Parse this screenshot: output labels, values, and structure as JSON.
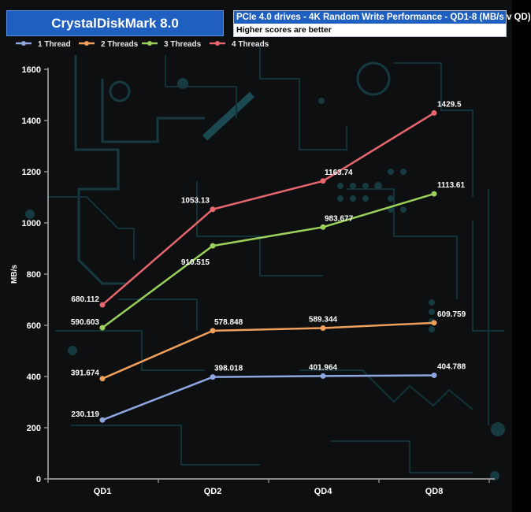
{
  "header": {
    "app_title": "CrystalDiskMark 8.0",
    "chart_title": "PCIe 4.0 drives - 4K Random Write Performance - QD1-8 (MB/s v QD)",
    "chart_subtitle": "Higher scores are better"
  },
  "colors": {
    "background": "#0d0f11",
    "header_blue": "#1f5fbf",
    "axis": "#8a8a8a",
    "circuit_pattern": "#163a40"
  },
  "chart_data": {
    "type": "line",
    "title": "PCIe 4.0 drives - 4K Random Write Performance - QD1-8 (MB/s v QD)",
    "subtitle": "Higher scores are better",
    "xlabel": "",
    "ylabel": "MB/s",
    "categories": [
      "QD1",
      "QD2",
      "QD4",
      "QD8"
    ],
    "ylim": [
      0,
      1600
    ],
    "yticks": [
      0,
      200,
      400,
      600,
      800,
      1000,
      1200,
      1400,
      1600
    ],
    "grid": false,
    "legend_position": "top-left",
    "series": [
      {
        "name": "1 Thread",
        "color": "#8fa6e0",
        "values": [
          230.119,
          398.018,
          401.964,
          404.788
        ],
        "labels": [
          "230.119",
          "398.018",
          "401.964",
          "404.788"
        ]
      },
      {
        "name": "2 Threads",
        "color": "#f0a05a",
        "values": [
          391.674,
          578.848,
          589.344,
          609.759
        ],
        "labels": [
          "391.674",
          "578.848",
          "589.344",
          "609.759"
        ]
      },
      {
        "name": "3 Threads",
        "color": "#9cd05a",
        "values": [
          590.603,
          910.515,
          983.677,
          1113.61
        ],
        "labels": [
          "590.603",
          "910.515",
          "983.677",
          "1113.61"
        ]
      },
      {
        "name": "4 Threads",
        "color": "#e8666e",
        "values": [
          680.112,
          1053.13,
          1163.74,
          1429.5
        ],
        "labels": [
          "680.112",
          "1053.13",
          "1163.74",
          "1429.5"
        ]
      }
    ]
  }
}
